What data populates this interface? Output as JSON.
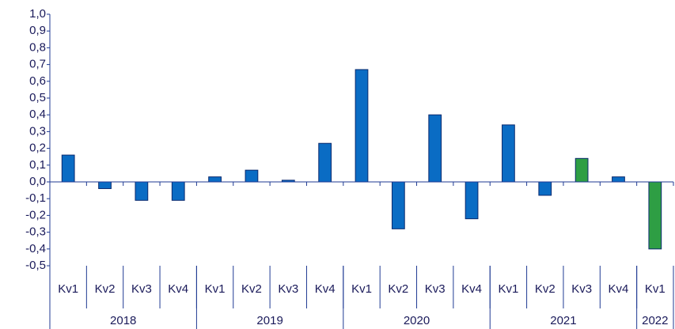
{
  "chart_data": {
    "type": "bar",
    "groups": [
      {
        "label": "2018",
        "categories": [
          "Kv1",
          "Kv2",
          "Kv3",
          "Kv4"
        ]
      },
      {
        "label": "2019",
        "categories": [
          "Kv1",
          "Kv2",
          "Kv3",
          "Kv4"
        ]
      },
      {
        "label": "2020",
        "categories": [
          "Kv1",
          "Kv2",
          "Kv3",
          "Kv4"
        ]
      },
      {
        "label": "2021",
        "categories": [
          "Kv1",
          "Kv2",
          "Kv3",
          "Kv4"
        ]
      },
      {
        "label": "2022",
        "categories": [
          "Kv1"
        ]
      }
    ],
    "values": [
      0.16,
      -0.04,
      -0.11,
      -0.11,
      0.03,
      0.07,
      0.01,
      0.23,
      0.67,
      -0.28,
      0.4,
      -0.22,
      0.34,
      -0.08,
      0.14,
      0.03,
      -0.4
    ],
    "colors": [
      "#0a6cc4",
      "#0a6cc4",
      "#0a6cc4",
      "#0a6cc4",
      "#0a6cc4",
      "#0a6cc4",
      "#0a6cc4",
      "#0a6cc4",
      "#0a6cc4",
      "#0a6cc4",
      "#0a6cc4",
      "#0a6cc4",
      "#0a6cc4",
      "#0a6cc4",
      "#2e9e44",
      "#0a6cc4",
      "#2e9e44"
    ],
    "ylim": [
      -0.5,
      1.0
    ],
    "yticks": [
      {
        "value": -0.5,
        "label": "-0,5"
      },
      {
        "value": -0.4,
        "label": "-0,4"
      },
      {
        "value": -0.3,
        "label": "-0,3"
      },
      {
        "value": -0.2,
        "label": "-0,2"
      },
      {
        "value": -0.1,
        "label": "-0,1"
      },
      {
        "value": 0,
        "label": "0,0"
      },
      {
        "value": 0.1,
        "label": "0,1"
      },
      {
        "value": 0.2,
        "label": "0,2"
      },
      {
        "value": 0.3,
        "label": "0,3"
      },
      {
        "value": 0.4,
        "label": "0,4"
      },
      {
        "value": 0.5,
        "label": "0,5"
      },
      {
        "value": 0.6,
        "label": "0,6"
      },
      {
        "value": 0.7,
        "label": "0,7"
      },
      {
        "value": 0.8,
        "label": "0,8"
      },
      {
        "value": 0.9,
        "label": "0,9"
      },
      {
        "value": 1,
        "label": "1,0"
      }
    ],
    "grid": false
  }
}
